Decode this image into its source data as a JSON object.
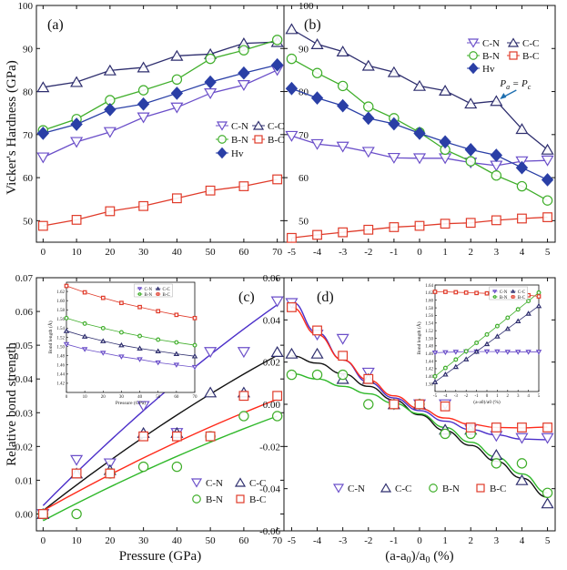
{
  "colors": {
    "CN": "#6b4fc9",
    "CC": "#2e2e6e",
    "BN": "#3fae2a",
    "BC": "#e03b2a",
    "Hv": "#2a3fa6",
    "fitCN": "#4b2fc9",
    "fitCC": "#111111",
    "fitBN": "#2fb82a",
    "fitBC": "#ff2a1a",
    "arrow": "#1e6fb0"
  },
  "labels": {
    "y_top": "Vicker's Hardness (GPa)",
    "y_bottom": "Relative bond strength",
    "x_left": "Pressure (GPa)",
    "x_right_main": "(a-a",
    "x_right_sub": "0",
    "x_right_mid": ")/a",
    "x_right_sub2": "0",
    "x_right_end": " (%)",
    "annot_p": "P",
    "annot_sub1": "a",
    "annot_eq": " = ",
    "annot_p2": "P",
    "annot_sub2": "c"
  },
  "chart_data": [
    {
      "id": "a",
      "label": "(a)",
      "type": "line",
      "xlabel": "Pressure (GPa)",
      "ylabel": "Vicker's Hardness (GPa)",
      "xlim": [
        -2,
        72
      ],
      "ylim": [
        45,
        100
      ],
      "xticks": [
        0,
        10,
        20,
        30,
        40,
        50,
        60,
        70
      ],
      "yticks": [
        50,
        60,
        70,
        80,
        90,
        100
      ],
      "x": [
        0,
        10,
        20,
        30,
        40,
        50,
        60,
        70
      ],
      "legend": [
        "C-N",
        "C-C",
        "B-N",
        "B-C",
        "Hv"
      ],
      "series": [
        {
          "name": "C-N",
          "marker": "tri_down",
          "values": [
            64.7,
            68.3,
            70.6,
            74.0,
            76.3,
            79.6,
            81.5,
            85.0
          ]
        },
        {
          "name": "C-C",
          "marker": "tri_up",
          "values": [
            81.0,
            82.2,
            84.9,
            85.6,
            88.3,
            88.7,
            91.2,
            91.5
          ]
        },
        {
          "name": "B-N",
          "marker": "circle",
          "values": [
            71.0,
            73.6,
            78.0,
            80.3,
            82.8,
            87.6,
            89.6,
            92.0
          ]
        },
        {
          "name": "B-C",
          "marker": "square",
          "values": [
            48.8,
            50.2,
            52.2,
            53.4,
            55.2,
            57.0,
            58.0,
            59.6
          ]
        },
        {
          "name": "Hv",
          "marker": "diamond",
          "values": [
            70.3,
            72.4,
            75.8,
            77.1,
            79.6,
            82.2,
            84.3,
            86.2
          ]
        }
      ]
    },
    {
      "id": "b",
      "label": "(b)",
      "type": "line",
      "xlim": [
        -5.3,
        5.3
      ],
      "ylim": [
        45,
        100
      ],
      "xticks": [
        -5,
        -4,
        -3,
        -2,
        -1,
        0,
        1,
        2,
        3,
        4,
        5
      ],
      "yticks": [
        50,
        60,
        70,
        80,
        90,
        100
      ],
      "x": [
        -5,
        -4,
        -3,
        -2,
        -1,
        0,
        1,
        2,
        3,
        4,
        5
      ],
      "legend": [
        "C-N",
        "C-C",
        "B-N",
        "B-C",
        "Hv"
      ],
      "series": [
        {
          "name": "C-N",
          "marker": "tri_down",
          "values": [
            69.7,
            67.8,
            67.2,
            66.0,
            64.6,
            64.5,
            64.5,
            63.5,
            62.8,
            63.8,
            64.0
          ]
        },
        {
          "name": "C-C",
          "marker": "tri_up",
          "values": [
            94.5,
            91.0,
            89.3,
            86.0,
            84.5,
            81.3,
            80.2,
            77.2,
            77.8,
            71.3,
            66.5
          ]
        },
        {
          "name": "B-N",
          "marker": "circle",
          "values": [
            87.6,
            84.3,
            81.3,
            76.5,
            73.8,
            70.5,
            66.5,
            63.8,
            60.5,
            58.0,
            54.7
          ]
        },
        {
          "name": "B-C",
          "marker": "square",
          "values": [
            46.0,
            46.7,
            47.3,
            47.9,
            48.5,
            48.8,
            49.3,
            49.5,
            50.1,
            50.5,
            50.8
          ]
        },
        {
          "name": "Hv",
          "marker": "diamond",
          "values": [
            80.7,
            78.5,
            76.7,
            73.8,
            72.5,
            70.3,
            68.3,
            66.5,
            65.2,
            62.3,
            59.5
          ]
        }
      ],
      "annotation": {
        "text": "Pa = Pc",
        "at_x": 3,
        "at_y": 77.8
      }
    },
    {
      "id": "c",
      "label": "(c)",
      "type": "scatter",
      "xlabel": "Pressure (GPa)",
      "ylabel": "Relative bond strength",
      "xlim": [
        -2,
        72
      ],
      "ylim": [
        -0.005,
        0.07
      ],
      "xticks": [
        0,
        10,
        20,
        30,
        40,
        50,
        60,
        70
      ],
      "yticks": [
        0.0,
        0.01,
        0.02,
        0.03,
        0.04,
        0.05,
        0.06,
        0.07
      ],
      "ytick_labels": [
        "0.00",
        "0.01",
        "0.02",
        "0.03",
        "0.04",
        "0.05",
        "0.06",
        "0.07"
      ],
      "x": [
        0,
        10,
        20,
        30,
        40,
        50,
        60,
        70
      ],
      "legend": [
        "C-N",
        "C-C",
        "B-N",
        "B-C"
      ],
      "series": [
        {
          "name": "C-N",
          "marker": "tri_down",
          "values": [
            0.0,
            0.016,
            0.015,
            0.032,
            0.024,
            0.048,
            0.048,
            0.063
          ],
          "fit": [
            0.0025,
            0.062
          ]
        },
        {
          "name": "C-C",
          "marker": "tri_up",
          "values": [
            0.0,
            0.012,
            0.013,
            0.024,
            0.024,
            0.036,
            0.036,
            0.048
          ],
          "fit": [
            0.001,
            0.047
          ]
        },
        {
          "name": "B-N",
          "marker": "circle",
          "values": [
            0.0,
            0.0,
            0.012,
            0.014,
            0.014,
            0.023,
            0.029,
            0.029
          ],
          "fit": [
            -0.002,
            0.029
          ]
        },
        {
          "name": "B-C",
          "marker": "square",
          "values": [
            0.0,
            0.012,
            0.012,
            0.023,
            0.023,
            0.023,
            0.035,
            0.035
          ],
          "fit": [
            0.001,
            0.034
          ]
        }
      ],
      "inset": {
        "xlabel": "Pressure (GPa)",
        "ylabel": "Bond length (Å)",
        "xlim": [
          0,
          70
        ],
        "ylim": [
          1.4,
          1.64
        ],
        "xticks": [
          0,
          10,
          20,
          30,
          40,
          50,
          60,
          70
        ],
        "yticks": [
          1.42,
          1.44,
          1.46,
          1.48,
          1.5,
          1.52,
          1.54,
          1.56,
          1.58,
          1.6,
          1.62
        ],
        "ytick_labels": [
          "1.42",
          "1.44",
          "1.46",
          "1.48",
          "1.50",
          "1.52",
          "1.54",
          "1.56",
          "1.58",
          "1.60",
          "1.62"
        ],
        "x": [
          0,
          10,
          20,
          30,
          40,
          50,
          60,
          70
        ],
        "series": [
          {
            "name": "C-N",
            "values": [
              1.505,
              1.494,
              1.486,
              1.478,
              1.472,
              1.465,
              1.46,
              1.455
            ]
          },
          {
            "name": "C-C",
            "values": [
              1.534,
              1.522,
              1.512,
              1.503,
              1.496,
              1.49,
              1.484,
              1.479
            ]
          },
          {
            "name": "B-N",
            "values": [
              1.562,
              1.55,
              1.54,
              1.531,
              1.523,
              1.515,
              1.509,
              1.503
            ]
          },
          {
            "name": "B-C",
            "values": [
              1.632,
              1.618,
              1.606,
              1.595,
              1.586,
              1.577,
              1.569,
              1.562
            ]
          }
        ]
      }
    },
    {
      "id": "d",
      "label": "(d)",
      "type": "scatter",
      "xlim": [
        -5.3,
        5.3
      ],
      "ylim": [
        -0.06,
        0.06
      ],
      "xticks": [
        -5,
        -4,
        -3,
        -2,
        -1,
        0,
        1,
        2,
        3,
        4,
        5
      ],
      "yticks": [
        -0.06,
        -0.04,
        -0.02,
        0.0,
        0.02,
        0.04,
        0.06
      ],
      "ytick_labels": [
        "-0.06",
        "-0.04",
        "-0.02",
        "0.00",
        "0.02",
        "0.04",
        "0.06"
      ],
      "x": [
        -5,
        -4,
        -3,
        -2,
        -1,
        0,
        1,
        2,
        3,
        4,
        5
      ],
      "legend": [
        "C-N",
        "C-C",
        "B-N",
        "B-C"
      ],
      "series": [
        {
          "name": "C-N",
          "marker": "tri_down",
          "values": [
            0.048,
            0.033,
            0.031,
            0.015,
            0.0,
            0.0,
            0.0,
            -0.012,
            -0.015,
            -0.016,
            -0.016
          ],
          "fit": [
            0.0486,
            0.034,
            0.021,
            0.0105,
            0.003,
            -0.003,
            -0.008,
            -0.012,
            -0.0145,
            -0.0165,
            -0.0168
          ]
        },
        {
          "name": "C-C",
          "marker": "tri_up",
          "values": [
            0.024,
            0.024,
            0.012,
            0.012,
            0.0,
            0.0,
            -0.012,
            -0.012,
            -0.024,
            -0.036,
            -0.047
          ],
          "fit": [
            0.023,
            0.0195,
            0.0145,
            0.0085,
            0.002,
            -0.005,
            -0.0125,
            -0.0195,
            -0.027,
            -0.035,
            -0.044
          ]
        },
        {
          "name": "B-N",
          "marker": "circle",
          "values": [
            0.014,
            0.014,
            0.014,
            0.0,
            0.0,
            0.0,
            -0.014,
            -0.014,
            -0.028,
            -0.028,
            -0.042
          ],
          "fit": [
            0.0145,
            0.012,
            0.0085,
            0.005,
            0.0005,
            -0.0045,
            -0.011,
            -0.018,
            -0.025,
            -0.033,
            -0.042
          ]
        },
        {
          "name": "B-C",
          "marker": "square",
          "values": [
            0.046,
            0.035,
            0.023,
            0.012,
            0.0,
            0.0,
            -0.001,
            -0.011,
            -0.011,
            -0.011,
            -0.011
          ],
          "fit": [
            0.046,
            0.033,
            0.021,
            0.0115,
            0.004,
            -0.002,
            -0.0065,
            -0.0095,
            -0.011,
            -0.0112,
            -0.0108
          ]
        }
      ],
      "inset": {
        "xlabel": "(a-a0)/a0 (%)",
        "ylabel": "Bond length (Å)",
        "xlim": [
          -5,
          5
        ],
        "ylim": [
          1.36,
          1.64
        ],
        "xticks": [
          -5,
          -4,
          -3,
          -2,
          -1,
          0,
          1,
          2,
          3,
          4,
          5
        ],
        "yticks": [
          1.38,
          1.4,
          1.42,
          1.44,
          1.46,
          1.48,
          1.5,
          1.52,
          1.54,
          1.56,
          1.58,
          1.6,
          1.62,
          1.64
        ],
        "ytick_labels": [
          "1.38",
          "1.40",
          "1.42",
          "1.44",
          "1.46",
          "1.48",
          "1.50",
          "1.52",
          "1.54",
          "1.56",
          "1.58",
          "1.60",
          "1.62",
          "1.64"
        ],
        "x": [
          -5,
          -4,
          -3,
          -2,
          -1,
          0,
          1,
          2,
          3,
          4,
          5
        ],
        "series": [
          {
            "name": "C-N",
            "values": [
              1.462,
              1.463,
              1.464,
              1.465,
              1.465,
              1.465,
              1.465,
              1.464,
              1.464,
              1.464,
              1.464
            ]
          },
          {
            "name": "C-C",
            "values": [
              1.385,
              1.405,
              1.425,
              1.445,
              1.465,
              1.485,
              1.505,
              1.525,
              1.545,
              1.565,
              1.585
            ]
          },
          {
            "name": "B-N",
            "values": [
              1.4,
              1.422,
              1.444,
              1.466,
              1.488,
              1.51,
              1.532,
              1.554,
              1.576,
              1.598,
              1.62
            ]
          },
          {
            "name": "B-C",
            "values": [
              1.622,
              1.622,
              1.621,
              1.62,
              1.619,
              1.618,
              1.617,
              1.616,
              1.615,
              1.613,
              1.61
            ]
          }
        ]
      }
    }
  ]
}
